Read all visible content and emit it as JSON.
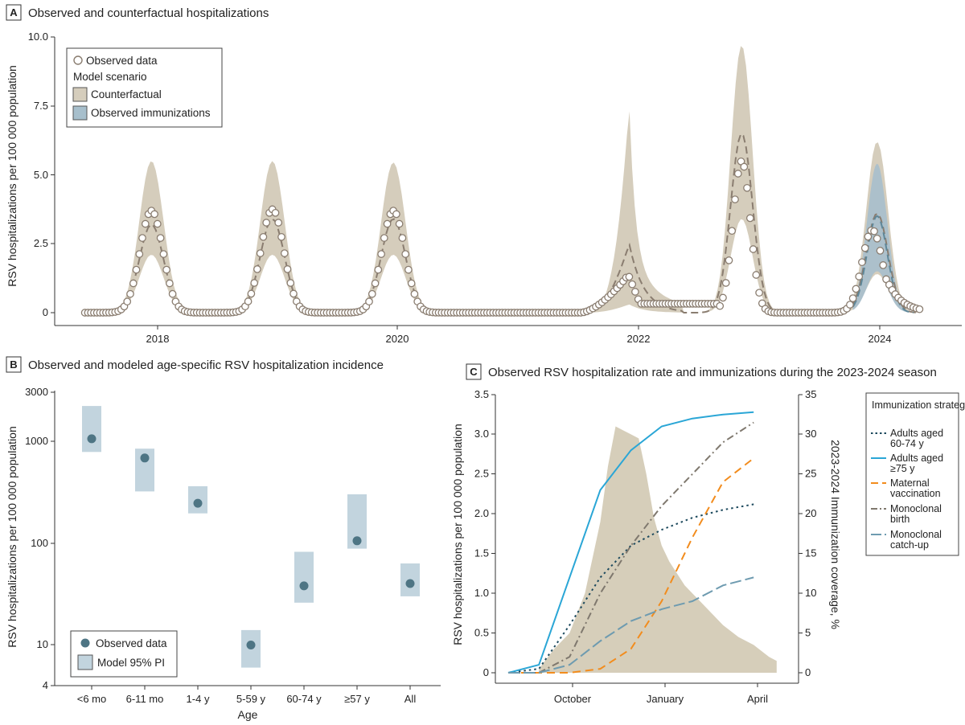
{
  "colors": {
    "counterfactual_fill": "#d5cdbc",
    "immunization_fill": "#a7bfcc",
    "observed_marker": "#8a7d70",
    "counterfactual_line": "#8a7d70",
    "immunization_line": "#5e8799",
    "pi_box": "#c2d4de",
    "dot": "#4e7584",
    "adults_60_74": "#1d4a5e",
    "adults_75": "#2aa6d6",
    "maternal": "#f28c1d",
    "mono_birth": "#7f786e",
    "mono_catchup": "#6e9bb0",
    "season_area": "#d6ceba"
  },
  "panelA": {
    "letter": "A",
    "title": "Observed and counterfactual hospitalizations",
    "chart_data": {
      "type": "line",
      "ylabel": "RSV hospitalizations per 100 000 population",
      "ylim": [
        0,
        10
      ],
      "yticks": [
        0,
        2.5,
        5.0,
        7.5,
        10.0
      ],
      "ytick_labels": [
        "0",
        "2.5",
        "5.0",
        "7.5",
        "10.0"
      ],
      "xlim": [
        2017.2,
        2024.7
      ],
      "xticks": [
        2018,
        2020,
        2022,
        2024
      ],
      "xtick_labels": [
        "2018",
        "2020",
        "2022",
        "2024"
      ],
      "legend": {
        "observed": "Observed data",
        "scenario_header": "Model scenario",
        "counterfactual": "Counterfactual",
        "observed_immunizations": "Observed immunizations"
      },
      "peaks": [
        {
          "center": 2018.0,
          "obs": 3.7,
          "median": 3.2,
          "upper": 5.5,
          "lower": 2.1,
          "width": 0.1
        },
        {
          "center": 2019.0,
          "obs": 3.75,
          "median": 3.4,
          "upper": 5.5,
          "lower": 2.1,
          "width": 0.1
        },
        {
          "center": 2020.0,
          "obs": 3.7,
          "median": 3.4,
          "upper": 5.45,
          "lower": 2.1,
          "width": 0.1
        },
        {
          "center": 2022.88,
          "obs": 5.5,
          "median": 6.5,
          "upper": 9.7,
          "lower": 3.4,
          "width": 0.09
        },
        {
          "center": 2024.0,
          "obs": 3.0,
          "median": 3.6,
          "upper": 6.2,
          "lower": 1.4,
          "width": 0.09
        }
      ],
      "covid_period": {
        "start": 2021.6,
        "peak": 2021.95,
        "obs": 1.3,
        "median": 2.5,
        "upper": 7.6,
        "lower": 0.3
      },
      "immunization_band": {
        "start": 2023.8,
        "end": 2024.3,
        "upper": 5.4,
        "median": 3.5,
        "lower": 1.5
      }
    }
  },
  "panelB": {
    "letter": "B",
    "title": "Observed and modeled age-specific RSV hospitalization incidence",
    "chart_data": {
      "type": "scatter",
      "scale": "log",
      "ylabel": "RSV hospitalizations per 100 000 population",
      "xlabel": "Age",
      "ylim": [
        4,
        3000
      ],
      "yticks": [
        4,
        10,
        100,
        1000,
        3000
      ],
      "ytick_labels": [
        "4",
        "10",
        "100",
        "1000",
        "3000"
      ],
      "categories": [
        "<6 mo",
        "6-11 mo",
        "1-4 y",
        "5-59 y",
        "60-74 y",
        "≥57 y",
        "All"
      ],
      "observed": [
        1050,
        680,
        245,
        10,
        38,
        105,
        40
      ],
      "pi_low": [
        780,
        320,
        195,
        6,
        26,
        88,
        30
      ],
      "pi_high": [
        2200,
        840,
        360,
        14,
        82,
        300,
        63
      ],
      "legend": {
        "observed": "Observed data",
        "pi": "Model 95% PI"
      }
    }
  },
  "panelC": {
    "letter": "C",
    "title": "Observed RSV hospitalization rate and immunizations during the 2023-2024 season",
    "chart_data": {
      "type": "line",
      "ylabel_left": "RSV hospitalizations per 100 000 population",
      "ylabel_right": "2023-2024 Immunization coverage, %",
      "ylim_left": [
        0,
        3.5
      ],
      "yticks_left": [
        "0",
        "0.5",
        "1.0",
        "1.5",
        "2.0",
        "2.5",
        "3.0",
        "3.5"
      ],
      "ylim_right": [
        0,
        35
      ],
      "yticks_right": [
        "0",
        "5",
        "10",
        "15",
        "20",
        "25",
        "30",
        "35"
      ],
      "x_weeks": [
        0,
        34
      ],
      "xticks": [
        {
          "week": 6.5,
          "label": "October"
        },
        {
          "week": 19.5,
          "label": "January"
        },
        {
          "week": 32.5,
          "label": "April"
        }
      ],
      "hospitalization_area": {
        "weeks": [
          4,
          6,
          8,
          10,
          12,
          13,
          14,
          15,
          16,
          17,
          18,
          19,
          20,
          21,
          22,
          23,
          24,
          25,
          26,
          28,
          30,
          32,
          34,
          35
        ],
        "values": [
          0.05,
          0.3,
          0.5,
          1.0,
          1.9,
          2.6,
          3.1,
          3.05,
          3.0,
          2.95,
          2.5,
          1.95,
          1.6,
          1.4,
          1.25,
          1.1,
          1.0,
          0.9,
          0.8,
          0.6,
          0.45,
          0.35,
          0.2,
          0.15
        ]
      },
      "weeks": [
        0,
        4,
        8,
        12,
        16,
        20,
        24,
        28,
        32
      ],
      "series": [
        {
          "name": "Adults aged 60-74 y",
          "key": "adults_60_74",
          "values": [
            0,
            0.5,
            6,
            12,
            16,
            18,
            19.5,
            20.5,
            21.2
          ]
        },
        {
          "name": "Adults aged ≥75 y",
          "key": "adults_75",
          "values": [
            0,
            1,
            12,
            23,
            28,
            31,
            32,
            32.5,
            32.8
          ]
        },
        {
          "name": "Maternal vaccination",
          "key": "maternal",
          "values": [
            0,
            0,
            0,
            0.5,
            3,
            9,
            17,
            24,
            27
          ]
        },
        {
          "name": "Monoclonal birth",
          "key": "mono_birth",
          "values": [
            0,
            0,
            2,
            10,
            16,
            21,
            25,
            29,
            31.5
          ]
        },
        {
          "name": "Monoclonal catch-up",
          "key": "mono_catchup",
          "values": [
            0,
            0,
            1,
            4,
            6.5,
            8,
            9,
            11,
            12
          ]
        }
      ],
      "legend": {
        "header": "Immunization strategy",
        "items": [
          {
            "key": "adults_60_74",
            "line1": "Adults aged",
            "line2": "60-74 y"
          },
          {
            "key": "adults_75",
            "line1": "Adults aged",
            "line2": "≥75 y"
          },
          {
            "key": "maternal",
            "line1": "Maternal",
            "line2": "vaccination"
          },
          {
            "key": "mono_birth",
            "line1": "Monoclonal",
            "line2": "birth"
          },
          {
            "key": "mono_catchup",
            "line1": "Monoclonal",
            "line2": "catch-up"
          }
        ]
      }
    }
  }
}
